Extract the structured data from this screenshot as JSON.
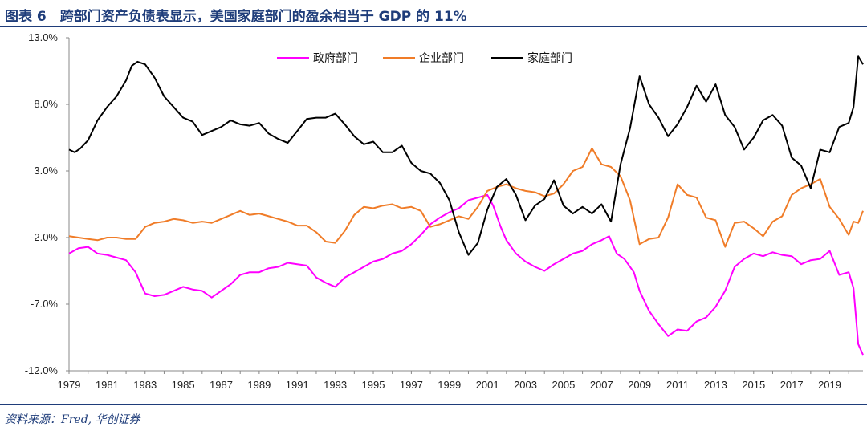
{
  "header": {
    "title": "图表 6　跨部门资产负债表显示，美国家庭部门的盈余相当于 GDP 的 11%"
  },
  "footer": {
    "source": "资料来源：Fred, 华创证券"
  },
  "colors": {
    "government": "#ff00ff",
    "corporate": "#f07c28",
    "household": "#000000",
    "accent": "#1f3d7a"
  },
  "chart_data": {
    "type": "line",
    "title": "",
    "xlabel": "",
    "ylabel": "",
    "xlim": [
      1979,
      2020.75
    ],
    "ylim": [
      -12,
      13
    ],
    "y_ticks": [
      "13.0%",
      "8.0%",
      "3.0%",
      "-2.0%",
      "-7.0%",
      "-12.0%"
    ],
    "x_ticks": [
      "1979",
      "1981",
      "1983",
      "1985",
      "1987",
      "1989",
      "1991",
      "1993",
      "1995",
      "1997",
      "1999",
      "2001",
      "2003",
      "2005",
      "2007",
      "2009",
      "2011",
      "2013",
      "2015",
      "2017",
      "2019"
    ],
    "grid": false,
    "legend_position": "top-center",
    "series": [
      {
        "name": "政府部门",
        "color": "#ff00ff",
        "points": [
          [
            1979,
            -3.2
          ],
          [
            1979.5,
            -2.8
          ],
          [
            1980,
            -2.7
          ],
          [
            1980.5,
            -3.2
          ],
          [
            1981,
            -3.3
          ],
          [
            1981.5,
            -3.5
          ],
          [
            1982,
            -3.7
          ],
          [
            1982.5,
            -4.6
          ],
          [
            1983,
            -6.2
          ],
          [
            1983.5,
            -6.4
          ],
          [
            1984,
            -6.3
          ],
          [
            1984.5,
            -6.0
          ],
          [
            1985,
            -5.7
          ],
          [
            1985.5,
            -5.9
          ],
          [
            1986,
            -6.0
          ],
          [
            1986.5,
            -6.5
          ],
          [
            1987,
            -6.0
          ],
          [
            1987.5,
            -5.5
          ],
          [
            1988,
            -4.8
          ],
          [
            1988.5,
            -4.6
          ],
          [
            1989,
            -4.6
          ],
          [
            1989.5,
            -4.3
          ],
          [
            1990,
            -4.2
          ],
          [
            1990.5,
            -3.9
          ],
          [
            1991,
            -4.0
          ],
          [
            1991.5,
            -4.1
          ],
          [
            1992,
            -5.0
          ],
          [
            1992.5,
            -5.4
          ],
          [
            1993,
            -5.7
          ],
          [
            1993.5,
            -5.0
          ],
          [
            1994,
            -4.6
          ],
          [
            1994.5,
            -4.2
          ],
          [
            1995,
            -3.8
          ],
          [
            1995.5,
            -3.6
          ],
          [
            1996,
            -3.2
          ],
          [
            1996.5,
            -3.0
          ],
          [
            1997,
            -2.5
          ],
          [
            1997.5,
            -1.8
          ],
          [
            1998,
            -1.0
          ],
          [
            1998.5,
            -0.5
          ],
          [
            1999,
            -0.1
          ],
          [
            1999.5,
            0.2
          ],
          [
            2000,
            0.8
          ],
          [
            2000.5,
            1.0
          ],
          [
            2001,
            1.2
          ],
          [
            2001.3,
            0.4
          ],
          [
            2001.7,
            -1.2
          ],
          [
            2002,
            -2.2
          ],
          [
            2002.5,
            -3.2
          ],
          [
            2003,
            -3.8
          ],
          [
            2003.5,
            -4.2
          ],
          [
            2004,
            -4.5
          ],
          [
            2004.5,
            -4.0
          ],
          [
            2005,
            -3.6
          ],
          [
            2005.5,
            -3.2
          ],
          [
            2006,
            -3.0
          ],
          [
            2006.5,
            -2.5
          ],
          [
            2007,
            -2.2
          ],
          [
            2007.4,
            -1.9
          ],
          [
            2007.8,
            -3.2
          ],
          [
            2008.2,
            -3.6
          ],
          [
            2008.7,
            -4.6
          ],
          [
            2009,
            -6.0
          ],
          [
            2009.5,
            -7.5
          ],
          [
            2010,
            -8.5
          ],
          [
            2010.5,
            -9.4
          ],
          [
            2011,
            -8.9
          ],
          [
            2011.5,
            -9.0
          ],
          [
            2012,
            -8.3
          ],
          [
            2012.5,
            -8.0
          ],
          [
            2013,
            -7.2
          ],
          [
            2013.5,
            -6.0
          ],
          [
            2014,
            -4.2
          ],
          [
            2014.5,
            -3.6
          ],
          [
            2015,
            -3.2
          ],
          [
            2015.5,
            -3.4
          ],
          [
            2016,
            -3.1
          ],
          [
            2016.5,
            -3.3
          ],
          [
            2017,
            -3.4
          ],
          [
            2017.5,
            -4.0
          ],
          [
            2018,
            -3.7
          ],
          [
            2018.5,
            -3.6
          ],
          [
            2019,
            -3.0
          ],
          [
            2019.5,
            -4.8
          ],
          [
            2020,
            -4.6
          ],
          [
            2020.25,
            -5.8
          ],
          [
            2020.5,
            -10.0
          ],
          [
            2020.75,
            -10.8
          ]
        ]
      },
      {
        "name": "企业部门",
        "color": "#f07c28",
        "points": [
          [
            1979,
            -1.9
          ],
          [
            1979.5,
            -2.0
          ],
          [
            1980,
            -2.1
          ],
          [
            1980.5,
            -2.2
          ],
          [
            1981,
            -2.0
          ],
          [
            1981.5,
            -2.0
          ],
          [
            1982,
            -2.1
          ],
          [
            1982.5,
            -2.1
          ],
          [
            1983,
            -1.2
          ],
          [
            1983.5,
            -0.9
          ],
          [
            1984,
            -0.8
          ],
          [
            1984.5,
            -0.6
          ],
          [
            1985,
            -0.7
          ],
          [
            1985.5,
            -0.9
          ],
          [
            1986,
            -0.8
          ],
          [
            1986.5,
            -0.9
          ],
          [
            1987,
            -0.6
          ],
          [
            1987.5,
            -0.3
          ],
          [
            1988,
            0.0
          ],
          [
            1988.5,
            -0.3
          ],
          [
            1989,
            -0.2
          ],
          [
            1989.5,
            -0.4
          ],
          [
            1990,
            -0.6
          ],
          [
            1990.5,
            -0.8
          ],
          [
            1991,
            -1.1
          ],
          [
            1991.5,
            -1.1
          ],
          [
            1992,
            -1.6
          ],
          [
            1992.5,
            -2.3
          ],
          [
            1993,
            -2.4
          ],
          [
            1993.5,
            -1.5
          ],
          [
            1994,
            -0.3
          ],
          [
            1994.5,
            0.3
          ],
          [
            1995,
            0.2
          ],
          [
            1995.5,
            0.4
          ],
          [
            1996,
            0.5
          ],
          [
            1996.5,
            0.2
          ],
          [
            1997,
            0.3
          ],
          [
            1997.5,
            0.0
          ],
          [
            1998,
            -1.2
          ],
          [
            1998.5,
            -1.0
          ],
          [
            1999,
            -0.7
          ],
          [
            1999.5,
            -0.4
          ],
          [
            2000,
            -0.6
          ],
          [
            2000.5,
            0.3
          ],
          [
            2001,
            1.5
          ],
          [
            2001.5,
            1.8
          ],
          [
            2002,
            2.0
          ],
          [
            2002.5,
            1.7
          ],
          [
            2003,
            1.5
          ],
          [
            2003.5,
            1.4
          ],
          [
            2004,
            1.1
          ],
          [
            2004.5,
            1.3
          ],
          [
            2005,
            2.0
          ],
          [
            2005.5,
            3.0
          ],
          [
            2006,
            3.3
          ],
          [
            2006.5,
            4.7
          ],
          [
            2007,
            3.5
          ],
          [
            2007.5,
            3.3
          ],
          [
            2008,
            2.6
          ],
          [
            2008.5,
            0.8
          ],
          [
            2009,
            -2.5
          ],
          [
            2009.5,
            -2.1
          ],
          [
            2010,
            -2.0
          ],
          [
            2010.5,
            -0.5
          ],
          [
            2011,
            2.0
          ],
          [
            2011.5,
            1.2
          ],
          [
            2012,
            1.0
          ],
          [
            2012.5,
            -0.5
          ],
          [
            2013,
            -0.7
          ],
          [
            2013.5,
            -2.7
          ],
          [
            2014,
            -0.9
          ],
          [
            2014.5,
            -0.8
          ],
          [
            2015,
            -1.3
          ],
          [
            2015.5,
            -1.9
          ],
          [
            2016,
            -0.8
          ],
          [
            2016.5,
            -0.4
          ],
          [
            2017,
            1.2
          ],
          [
            2017.5,
            1.7
          ],
          [
            2018,
            2.0
          ],
          [
            2018.5,
            2.4
          ],
          [
            2019,
            0.3
          ],
          [
            2019.5,
            -0.6
          ],
          [
            2020,
            -1.8
          ],
          [
            2020.25,
            -0.8
          ],
          [
            2020.5,
            -0.9
          ],
          [
            2020.75,
            0.0
          ]
        ]
      },
      {
        "name": "家庭部门",
        "color": "#000000",
        "points": [
          [
            1979,
            4.6
          ],
          [
            1979.3,
            4.4
          ],
          [
            1979.6,
            4.7
          ],
          [
            1980,
            5.3
          ],
          [
            1980.5,
            6.8
          ],
          [
            1981,
            7.8
          ],
          [
            1981.5,
            8.6
          ],
          [
            1982,
            9.8
          ],
          [
            1982.3,
            10.9
          ],
          [
            1982.6,
            11.2
          ],
          [
            1983,
            11.0
          ],
          [
            1983.5,
            10.0
          ],
          [
            1984,
            8.6
          ],
          [
            1984.5,
            7.8
          ],
          [
            1985,
            7.0
          ],
          [
            1985.5,
            6.7
          ],
          [
            1986,
            5.7
          ],
          [
            1986.5,
            6.0
          ],
          [
            1987,
            6.3
          ],
          [
            1987.5,
            6.8
          ],
          [
            1988,
            6.5
          ],
          [
            1988.5,
            6.4
          ],
          [
            1989,
            6.6
          ],
          [
            1989.5,
            5.8
          ],
          [
            1990,
            5.4
          ],
          [
            1990.5,
            5.1
          ],
          [
            1991,
            6.0
          ],
          [
            1991.5,
            6.9
          ],
          [
            1992,
            7.0
          ],
          [
            1992.5,
            7.0
          ],
          [
            1993,
            7.3
          ],
          [
            1993.5,
            6.5
          ],
          [
            1994,
            5.6
          ],
          [
            1994.5,
            5.0
          ],
          [
            1995,
            5.2
          ],
          [
            1995.5,
            4.4
          ],
          [
            1996,
            4.4
          ],
          [
            1996.5,
            4.9
          ],
          [
            1997,
            3.6
          ],
          [
            1997.5,
            3.0
          ],
          [
            1998,
            2.8
          ],
          [
            1998.5,
            2.1
          ],
          [
            1999,
            0.8
          ],
          [
            1999.5,
            -1.6
          ],
          [
            2000,
            -3.3
          ],
          [
            2000.5,
            -2.4
          ],
          [
            2001,
            0.1
          ],
          [
            2001.5,
            1.8
          ],
          [
            2002,
            2.4
          ],
          [
            2002.5,
            1.2
          ],
          [
            2003,
            -0.7
          ],
          [
            2003.5,
            0.4
          ],
          [
            2004,
            0.9
          ],
          [
            2004.5,
            2.3
          ],
          [
            2005,
            0.4
          ],
          [
            2005.5,
            -0.2
          ],
          [
            2006,
            0.3
          ],
          [
            2006.5,
            -0.2
          ],
          [
            2007,
            0.5
          ],
          [
            2007.5,
            -0.8
          ],
          [
            2008,
            3.5
          ],
          [
            2008.5,
            6.2
          ],
          [
            2009,
            10.1
          ],
          [
            2009.5,
            8.0
          ],
          [
            2010,
            7.0
          ],
          [
            2010.5,
            5.6
          ],
          [
            2011,
            6.5
          ],
          [
            2011.5,
            7.8
          ],
          [
            2012,
            9.4
          ],
          [
            2012.5,
            8.2
          ],
          [
            2013,
            9.5
          ],
          [
            2013.5,
            7.2
          ],
          [
            2014,
            6.3
          ],
          [
            2014.5,
            4.6
          ],
          [
            2015,
            5.5
          ],
          [
            2015.5,
            6.8
          ],
          [
            2016,
            7.2
          ],
          [
            2016.5,
            6.4
          ],
          [
            2017,
            4.0
          ],
          [
            2017.5,
            3.4
          ],
          [
            2018,
            1.7
          ],
          [
            2018.5,
            4.6
          ],
          [
            2019,
            4.4
          ],
          [
            2019.5,
            6.3
          ],
          [
            2020,
            6.6
          ],
          [
            2020.25,
            7.8
          ],
          [
            2020.5,
            11.6
          ],
          [
            2020.75,
            11.0
          ]
        ]
      }
    ]
  }
}
